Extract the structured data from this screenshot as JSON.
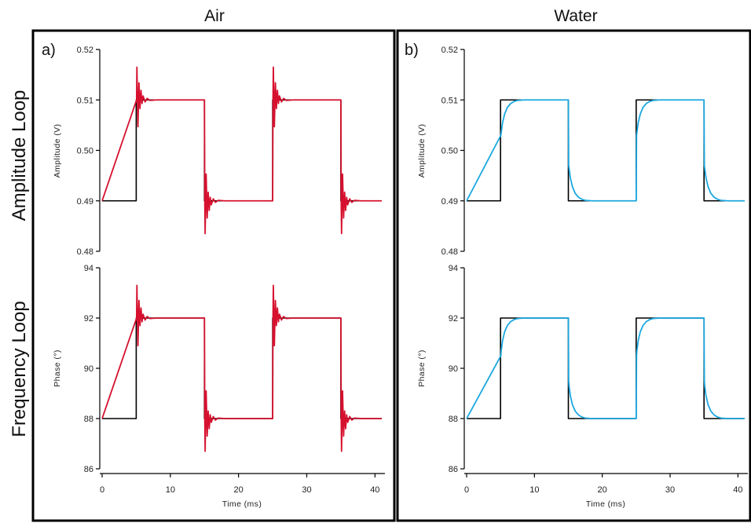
{
  "column_titles": [
    "Air",
    "Water"
  ],
  "row_titles": [
    "Amplitude Loop",
    "Frequency Loop"
  ],
  "panel_labels": [
    "a)",
    "b)"
  ],
  "colors": {
    "air": "#d6102e",
    "water": "#1ba8e0",
    "reference": "#000000",
    "frame": "#000000"
  },
  "chart_data": [
    {
      "type": "line",
      "panel": "a",
      "position": "top",
      "xlabel": "",
      "ylabel": "Amplitude (V)",
      "xlim": [
        0,
        41
      ],
      "ylim": [
        0.48,
        0.52
      ],
      "xticks": [],
      "yticks": [
        "0.48",
        "0.49",
        "0.50",
        "0.51",
        "0.52"
      ],
      "ytick_values": [
        0.48,
        0.49,
        0.5,
        0.51,
        0.52
      ],
      "series": [
        {
          "role": "reference",
          "x": [
            0,
            5,
            5,
            15,
            15,
            25,
            25,
            35,
            35,
            41
          ],
          "y": [
            0.49,
            0.49,
            0.51,
            0.51,
            0.49,
            0.49,
            0.51,
            0.51,
            0.49,
            0.49
          ]
        },
        {
          "role": "measured",
          "x": [
            0,
            5.05,
            5.1,
            5.25,
            5.4,
            5.55,
            5.7,
            5.85,
            6.0,
            6.3,
            6.6,
            7.0,
            8,
            10,
            12,
            14,
            15,
            15.05,
            15.1,
            15.25,
            15.4,
            15.55,
            15.7,
            15.85,
            16.0,
            16.3,
            16.6,
            17.0,
            18,
            20,
            22,
            24,
            25,
            25.05,
            25.1,
            25.25,
            25.4,
            25.55,
            25.7,
            25.85,
            26.0,
            26.3,
            26.6,
            27.0,
            28,
            30,
            32,
            34,
            35,
            35.05,
            35.1,
            35.25,
            35.4,
            35.55,
            35.7,
            35.85,
            36.0,
            36.3,
            36.6,
            37.0,
            38,
            41
          ],
          "y": [
            0.49,
            0.51,
            0.5165,
            0.5047,
            0.5134,
            0.5083,
            0.5119,
            0.5093,
            0.5108,
            0.5096,
            0.5103,
            0.5099,
            0.51,
            0.51,
            0.51,
            0.51,
            0.51,
            0.49,
            0.4835,
            0.4953,
            0.4866,
            0.4917,
            0.4881,
            0.4907,
            0.4892,
            0.4904,
            0.4897,
            0.4901,
            0.49,
            0.49,
            0.49,
            0.49,
            0.49,
            0.51,
            0.5165,
            0.5047,
            0.5134,
            0.5083,
            0.5119,
            0.5093,
            0.5108,
            0.5096,
            0.5103,
            0.5099,
            0.51,
            0.51,
            0.51,
            0.51,
            0.51,
            0.49,
            0.4835,
            0.4953,
            0.4866,
            0.4917,
            0.4881,
            0.4907,
            0.4892,
            0.4904,
            0.4897,
            0.4901,
            0.49,
            0.49
          ]
        }
      ]
    },
    {
      "type": "line",
      "panel": "a",
      "position": "bottom",
      "xlabel": "Time (ms)",
      "ylabel": "Phase (°)",
      "xlim": [
        0,
        41
      ],
      "ylim": [
        86,
        94
      ],
      "xticks": [
        "0",
        "10",
        "20",
        "30",
        "40"
      ],
      "xtick_values": [
        0,
        10,
        20,
        30,
        40
      ],
      "yticks": [
        "86",
        "88",
        "90",
        "92",
        "94"
      ],
      "ytick_values": [
        86,
        88,
        90,
        92,
        94
      ],
      "series": [
        {
          "role": "reference",
          "x": [
            0,
            5,
            5,
            15,
            15,
            25,
            25,
            35,
            35,
            41
          ],
          "y": [
            88,
            88,
            92,
            92,
            88,
            88,
            92,
            92,
            88,
            88
          ]
        },
        {
          "role": "measured",
          "x": [
            0,
            5.05,
            5.1,
            5.25,
            5.4,
            5.55,
            5.7,
            5.85,
            6.0,
            6.3,
            6.6,
            7.0,
            8,
            10,
            12,
            14,
            15,
            15.05,
            15.1,
            15.25,
            15.4,
            15.55,
            15.7,
            15.85,
            16.0,
            16.3,
            16.6,
            17.0,
            18,
            20,
            22,
            24,
            25,
            25.05,
            25.1,
            25.25,
            25.4,
            25.55,
            25.7,
            25.85,
            26.0,
            26.3,
            26.6,
            27.0,
            28,
            30,
            32,
            34,
            35,
            35.05,
            35.1,
            35.25,
            35.4,
            35.55,
            35.7,
            35.85,
            36.0,
            36.3,
            36.6,
            37.0,
            38,
            41
          ],
          "y": [
            88,
            92,
            93.3,
            90.9,
            92.7,
            91.7,
            92.4,
            91.85,
            92.15,
            91.92,
            92.06,
            91.98,
            92,
            92,
            92,
            92,
            92,
            88,
            86.7,
            89.1,
            87.3,
            88.3,
            87.6,
            88.15,
            87.85,
            88.08,
            87.94,
            88.02,
            88,
            88,
            88,
            88,
            88,
            92,
            93.3,
            90.9,
            92.7,
            91.7,
            92.4,
            91.85,
            92.15,
            91.92,
            92.06,
            91.98,
            92,
            92,
            92,
            92,
            92,
            88,
            86.7,
            89.1,
            87.3,
            88.3,
            87.6,
            88.15,
            87.85,
            88.08,
            87.94,
            88.02,
            88,
            88
          ]
        }
      ]
    },
    {
      "type": "line",
      "panel": "b",
      "position": "top",
      "xlabel": "",
      "ylabel": "Amplitude (V)",
      "xlim": [
        0,
        41
      ],
      "ylim": [
        0.48,
        0.52
      ],
      "xticks": [],
      "yticks": [
        "0.48",
        "0.49",
        "0.50",
        "0.51",
        "0.52"
      ],
      "ytick_values": [
        0.48,
        0.49,
        0.5,
        0.51,
        0.52
      ],
      "series": [
        {
          "role": "reference",
          "x": [
            0,
            5,
            5,
            15,
            15,
            25,
            25,
            35,
            35,
            41
          ],
          "y": [
            0.49,
            0.49,
            0.51,
            0.51,
            0.49,
            0.49,
            0.51,
            0.51,
            0.49,
            0.49
          ]
        },
        {
          "role": "measured",
          "x": [
            0,
            5.05,
            5.1,
            5.3,
            5.6,
            6.0,
            6.5,
            7.0,
            7.5,
            8.5,
            10,
            12,
            14,
            15,
            15.05,
            15.1,
            15.3,
            15.6,
            16.0,
            16.5,
            17.0,
            17.5,
            18.5,
            20,
            22,
            24,
            25,
            25.05,
            25.1,
            25.3,
            25.6,
            26.0,
            26.5,
            27.0,
            27.5,
            28.5,
            30,
            32,
            34,
            35,
            35.05,
            35.1,
            35.3,
            35.6,
            36.0,
            36.5,
            37.0,
            37.5,
            38.5,
            41
          ],
          "y": [
            0.49,
            0.503,
            0.5035,
            0.5055,
            0.5072,
            0.5085,
            0.5093,
            0.5097,
            0.5099,
            0.51,
            0.51,
            0.51,
            0.51,
            0.51,
            0.497,
            0.4965,
            0.4945,
            0.4928,
            0.4915,
            0.4907,
            0.4903,
            0.4901,
            0.49,
            0.49,
            0.49,
            0.49,
            0.49,
            0.503,
            0.5035,
            0.5055,
            0.5072,
            0.5085,
            0.5093,
            0.5097,
            0.5099,
            0.51,
            0.51,
            0.51,
            0.51,
            0.51,
            0.497,
            0.4965,
            0.4945,
            0.4928,
            0.4915,
            0.4907,
            0.4903,
            0.4901,
            0.49,
            0.49
          ]
        }
      ]
    },
    {
      "type": "line",
      "panel": "b",
      "position": "bottom",
      "xlabel": "Time (ms)",
      "ylabel": "Phase (°)",
      "xlim": [
        0,
        41
      ],
      "ylim": [
        86,
        94
      ],
      "xticks": [
        "0",
        "10",
        "20",
        "30",
        "40"
      ],
      "xtick_values": [
        0,
        10,
        20,
        30,
        40
      ],
      "yticks": [
        "86",
        "88",
        "90",
        "92",
        "94"
      ],
      "ytick_values": [
        86,
        88,
        90,
        92,
        94
      ],
      "series": [
        {
          "role": "reference",
          "x": [
            0,
            5,
            5,
            15,
            15,
            25,
            25,
            35,
            35,
            41
          ],
          "y": [
            88,
            88,
            92,
            92,
            88,
            88,
            92,
            92,
            88,
            88
          ]
        },
        {
          "role": "measured",
          "x": [
            0,
            5.05,
            5.1,
            5.3,
            5.6,
            6.0,
            6.5,
            7.0,
            7.5,
            8.5,
            10,
            12,
            14,
            15,
            15.05,
            15.1,
            15.3,
            15.6,
            16.0,
            16.5,
            17.0,
            17.5,
            18.5,
            20,
            22,
            24,
            25,
            25.05,
            25.1,
            25.3,
            25.6,
            26.0,
            26.5,
            27.0,
            27.5,
            28.5,
            30,
            32,
            34,
            35,
            35.05,
            35.1,
            35.3,
            35.6,
            36.0,
            36.5,
            37.0,
            37.5,
            38.5,
            41
          ],
          "y": [
            88,
            90.5,
            90.7,
            91.1,
            91.45,
            91.7,
            91.86,
            91.94,
            91.98,
            92,
            92,
            92,
            92,
            92,
            89.5,
            89.3,
            88.9,
            88.55,
            88.3,
            88.14,
            88.06,
            88.02,
            88,
            88,
            88,
            88,
            88,
            90.5,
            90.7,
            91.1,
            91.45,
            91.7,
            91.86,
            91.94,
            91.98,
            92,
            92,
            92,
            92,
            92,
            89.5,
            89.3,
            88.9,
            88.55,
            88.3,
            88.14,
            88.06,
            88.02,
            88,
            88
          ]
        }
      ]
    }
  ]
}
